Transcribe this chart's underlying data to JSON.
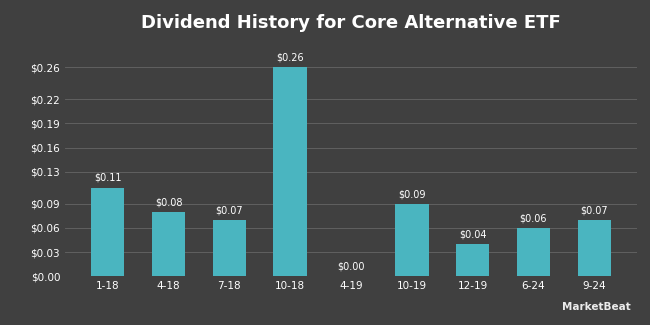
{
  "title": "Dividend History for Core Alternative ETF",
  "categories": [
    "1-18",
    "4-18",
    "7-18",
    "10-18",
    "4-19",
    "10-19",
    "12-19",
    "6-24",
    "9-24"
  ],
  "values": [
    0.11,
    0.08,
    0.07,
    0.26,
    0.0,
    0.09,
    0.04,
    0.06,
    0.07
  ],
  "bar_color": "#4ab5c0",
  "background_color": "#404040",
  "text_color": "#ffffff",
  "grid_color": "#666666",
  "title_fontsize": 13,
  "label_fontsize": 7,
  "tick_fontsize": 7.5,
  "ylim": [
    0,
    0.295
  ],
  "yticks": [
    0.0,
    0.03,
    0.06,
    0.09,
    0.13,
    0.16,
    0.19,
    0.22,
    0.26
  ],
  "ytick_labels": [
    "$0.00",
    "$0.03",
    "$0.06",
    "$0.09",
    "$0.13",
    "$0.16",
    "$0.19",
    "$0.22",
    "$0.26"
  ],
  "watermark": "MarketBeat"
}
